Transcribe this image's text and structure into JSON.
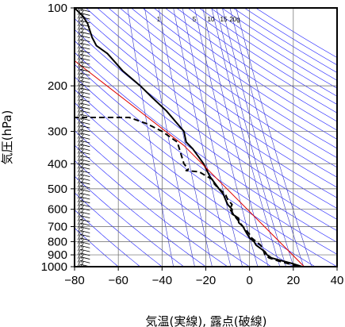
{
  "chart_data": {
    "type": "line",
    "xlabel": "気温(実線), 露点(破線)",
    "ylabel": "気圧(hPa)",
    "xlim": [
      -80,
      40
    ],
    "ylim_pressure": [
      1000,
      100
    ],
    "y_scale": "log",
    "x_ticks": [
      -80,
      -60,
      -40,
      -20,
      0,
      20,
      40
    ],
    "x_tick_labels": [
      "−80",
      "−60",
      "−40",
      "−20",
      "0",
      "20",
      "40"
    ],
    "y_ticks": [
      100,
      200,
      300,
      400,
      500,
      600,
      700,
      800,
      900,
      1000
    ],
    "y_tick_labels": [
      "100",
      "200",
      "300",
      "400",
      "500",
      "600",
      "700",
      "800",
      "900",
      "1000"
    ],
    "mixing_ratio_labels": [
      "1",
      "5",
      "10",
      "15",
      "20g"
    ],
    "mixing_ratio_values": [
      1,
      5,
      10,
      15,
      20
    ],
    "grid": true,
    "series": [
      {
        "role": "temperature",
        "style": "solid",
        "color": "#000000",
        "points": [
          [
            24,
            1000
          ],
          [
            20,
            975
          ],
          [
            15,
            950
          ],
          [
            10,
            925
          ],
          [
            8,
            900
          ],
          [
            7,
            875
          ],
          [
            5,
            850
          ],
          [
            3,
            825
          ],
          [
            2,
            800
          ],
          [
            0,
            775
          ],
          [
            -1,
            750
          ],
          [
            -2,
            725
          ],
          [
            -3,
            700
          ],
          [
            -5,
            675
          ],
          [
            -5,
            650
          ],
          [
            -8,
            625
          ],
          [
            -8,
            600
          ],
          [
            -10,
            575
          ],
          [
            -11,
            550
          ],
          [
            -12,
            525
          ],
          [
            -14,
            500
          ],
          [
            -18,
            450
          ],
          [
            -21,
            400
          ],
          [
            -26,
            350
          ],
          [
            -29,
            330
          ],
          [
            -30,
            300
          ],
          [
            -38,
            250
          ],
          [
            -45,
            220
          ],
          [
            -50,
            200
          ],
          [
            -58,
            175
          ],
          [
            -65,
            150
          ],
          [
            -70,
            140
          ],
          [
            -72,
            130
          ],
          [
            -74,
            115
          ],
          [
            -76,
            108
          ],
          [
            -80,
            100
          ]
        ]
      },
      {
        "role": "dewpoint",
        "style": "dashed",
        "color": "#000000",
        "points": [
          [
            22,
            1000
          ],
          [
            18,
            975
          ],
          [
            13,
            950
          ],
          [
            9,
            925
          ],
          [
            7,
            900
          ],
          [
            6,
            850
          ],
          [
            5,
            825
          ],
          [
            3,
            800
          ],
          [
            1,
            775
          ],
          [
            0,
            750
          ],
          [
            -3,
            700
          ],
          [
            -6,
            650
          ],
          [
            -9,
            600
          ],
          [
            -8,
            575
          ],
          [
            -10,
            550
          ],
          [
            -11,
            525
          ],
          [
            -14,
            500
          ],
          [
            -16,
            480
          ],
          [
            -17,
            460
          ],
          [
            -21,
            440
          ],
          [
            -23,
            430
          ],
          [
            -29,
            425
          ],
          [
            -28,
            420
          ],
          [
            -30,
            400
          ],
          [
            -33,
            330
          ],
          [
            -40,
            300
          ],
          [
            -47,
            280
          ],
          [
            -55,
            265
          ],
          [
            -66,
            265
          ],
          [
            -80,
            265
          ]
        ]
      },
      {
        "role": "reference",
        "style": "solid",
        "color": "#e00000",
        "points": [
          [
            25,
            1000
          ],
          [
            -30,
            340
          ],
          [
            -80,
            160
          ]
        ]
      }
    ],
    "wind_barbs_x_data": -73,
    "wind_barbs_pressure_from": 1000,
    "wind_barbs_pressure_to": 100,
    "wind_barbs_count": 70,
    "colors": {
      "frame": "#000000",
      "grid": "#666666",
      "dry_adiabat": "#1a1aff",
      "mixing_ratio": "#3333cc",
      "temperature": "#000000",
      "dewpoint": "#000000",
      "reference": "#e00000"
    }
  }
}
